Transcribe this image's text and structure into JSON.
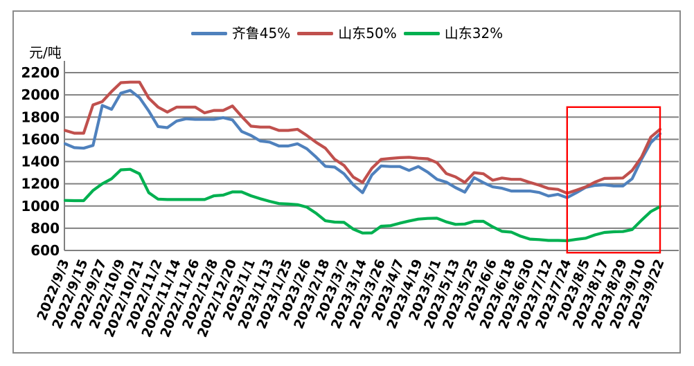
{
  "chart_data": {
    "type": "line",
    "unit_label": "元/吨",
    "ylim": [
      600,
      2200
    ],
    "ytick_step": 200,
    "yticks": [
      600,
      800,
      1000,
      1200,
      1400,
      1600,
      1800,
      2000,
      2200
    ],
    "grid": true,
    "legend_position": "top",
    "x_tick_labels": [
      "2022/9/3",
      "2022/9/15",
      "2022/9/27",
      "2022/10/9",
      "2022/10/21",
      "2022/11/2",
      "2022/11/14",
      "2022/11/26",
      "2022/12/8",
      "2022/12/20",
      "2023/1/1",
      "2023/1/13",
      "2023/1/25",
      "2023/2/6",
      "2023/2/18",
      "2023/3/2",
      "2023/3/14",
      "2023/3/26",
      "2023/4/7",
      "2023/4/19",
      "2023/5/1",
      "2023/5/13",
      "2023/5/25",
      "2023/6/6",
      "2023/6/18",
      "2023/6/30",
      "2023/7/12",
      "2023/7/24",
      "2023/8/5",
      "2023/8/17",
      "2023/8/29",
      "2023/9/10",
      "2023/9/22"
    ],
    "x": [
      "2022/9/3",
      "2022/9/9",
      "2022/9/15",
      "2022/9/21",
      "2022/9/27",
      "2022/10/3",
      "2022/10/9",
      "2022/10/15",
      "2022/10/21",
      "2022/10/27",
      "2022/11/2",
      "2022/11/8",
      "2022/11/14",
      "2022/11/20",
      "2022/11/26",
      "2022/12/2",
      "2022/12/8",
      "2022/12/14",
      "2022/12/20",
      "2022/12/26",
      "2023/1/1",
      "2023/1/7",
      "2023/1/13",
      "2023/1/19",
      "2023/1/25",
      "2023/1/31",
      "2023/2/6",
      "2023/2/12",
      "2023/2/18",
      "2023/2/24",
      "2023/3/2",
      "2023/3/8",
      "2023/3/14",
      "2023/3/20",
      "2023/3/26",
      "2023/4/1",
      "2023/4/7",
      "2023/4/13",
      "2023/4/19",
      "2023/4/25",
      "2023/5/1",
      "2023/5/7",
      "2023/5/13",
      "2023/5/19",
      "2023/5/25",
      "2023/5/31",
      "2023/6/6",
      "2023/6/12",
      "2023/6/18",
      "2023/6/24",
      "2023/6/30",
      "2023/7/6",
      "2023/7/12",
      "2023/7/18",
      "2023/7/24",
      "2023/7/30",
      "2023/8/5",
      "2023/8/11",
      "2023/8/17",
      "2023/8/23",
      "2023/8/29",
      "2023/9/4",
      "2023/9/10",
      "2023/9/16",
      "2023/9/22"
    ],
    "xtick_every": 2,
    "series": [
      {
        "name": "齐鲁45%",
        "color": "#4F81BD",
        "values": [
          1560,
          1525,
          1520,
          1545,
          1905,
          1870,
          2015,
          2040,
          1975,
          1855,
          1715,
          1705,
          1765,
          1785,
          1780,
          1780,
          1780,
          1795,
          1775,
          1670,
          1635,
          1585,
          1575,
          1540,
          1540,
          1560,
          1515,
          1440,
          1357,
          1350,
          1290,
          1190,
          1120,
          1280,
          1360,
          1355,
          1355,
          1320,
          1355,
          1305,
          1240,
          1215,
          1165,
          1125,
          1255,
          1210,
          1172,
          1160,
          1135,
          1135,
          1135,
          1122,
          1090,
          1105,
          1075,
          1120,
          1168,
          1185,
          1190,
          1180,
          1180,
          1245,
          1420,
          1570,
          1650
        ]
      },
      {
        "name": "山东50%",
        "color": "#C0504D",
        "values": [
          1680,
          1655,
          1655,
          1910,
          1940,
          2030,
          2110,
          2115,
          2115,
          1970,
          1890,
          1845,
          1890,
          1890,
          1890,
          1838,
          1860,
          1860,
          1900,
          1805,
          1718,
          1710,
          1710,
          1680,
          1680,
          1690,
          1635,
          1573,
          1520,
          1420,
          1365,
          1260,
          1212,
          1340,
          1420,
          1428,
          1435,
          1438,
          1430,
          1425,
          1390,
          1292,
          1262,
          1212,
          1300,
          1290,
          1232,
          1252,
          1240,
          1240,
          1212,
          1188,
          1158,
          1150,
          1115,
          1142,
          1172,
          1215,
          1248,
          1250,
          1252,
          1320,
          1440,
          1620,
          1690
        ]
      },
      {
        "name": "山东32%",
        "color": "#00B050",
        "values": [
          1050,
          1048,
          1048,
          1140,
          1200,
          1245,
          1325,
          1330,
          1290,
          1120,
          1062,
          1058,
          1058,
          1058,
          1058,
          1058,
          1092,
          1098,
          1127,
          1127,
          1092,
          1065,
          1042,
          1022,
          1018,
          1012,
          990,
          935,
          867,
          855,
          853,
          792,
          757,
          758,
          818,
          823,
          845,
          865,
          882,
          888,
          890,
          857,
          835,
          838,
          862,
          862,
          812,
          772,
          765,
          728,
          702,
          698,
          690,
          690,
          688,
          700,
          710,
          740,
          762,
          768,
          770,
          788,
          872,
          950,
          995
        ]
      }
    ],
    "highlight_box": {
      "color": "#FF0000",
      "x_from": "2023/7/24",
      "x_to": "2023/9/22",
      "y_from": 580,
      "y_to": 1890
    },
    "axis_color": "#808080",
    "border_color": "#8A8A8A"
  }
}
